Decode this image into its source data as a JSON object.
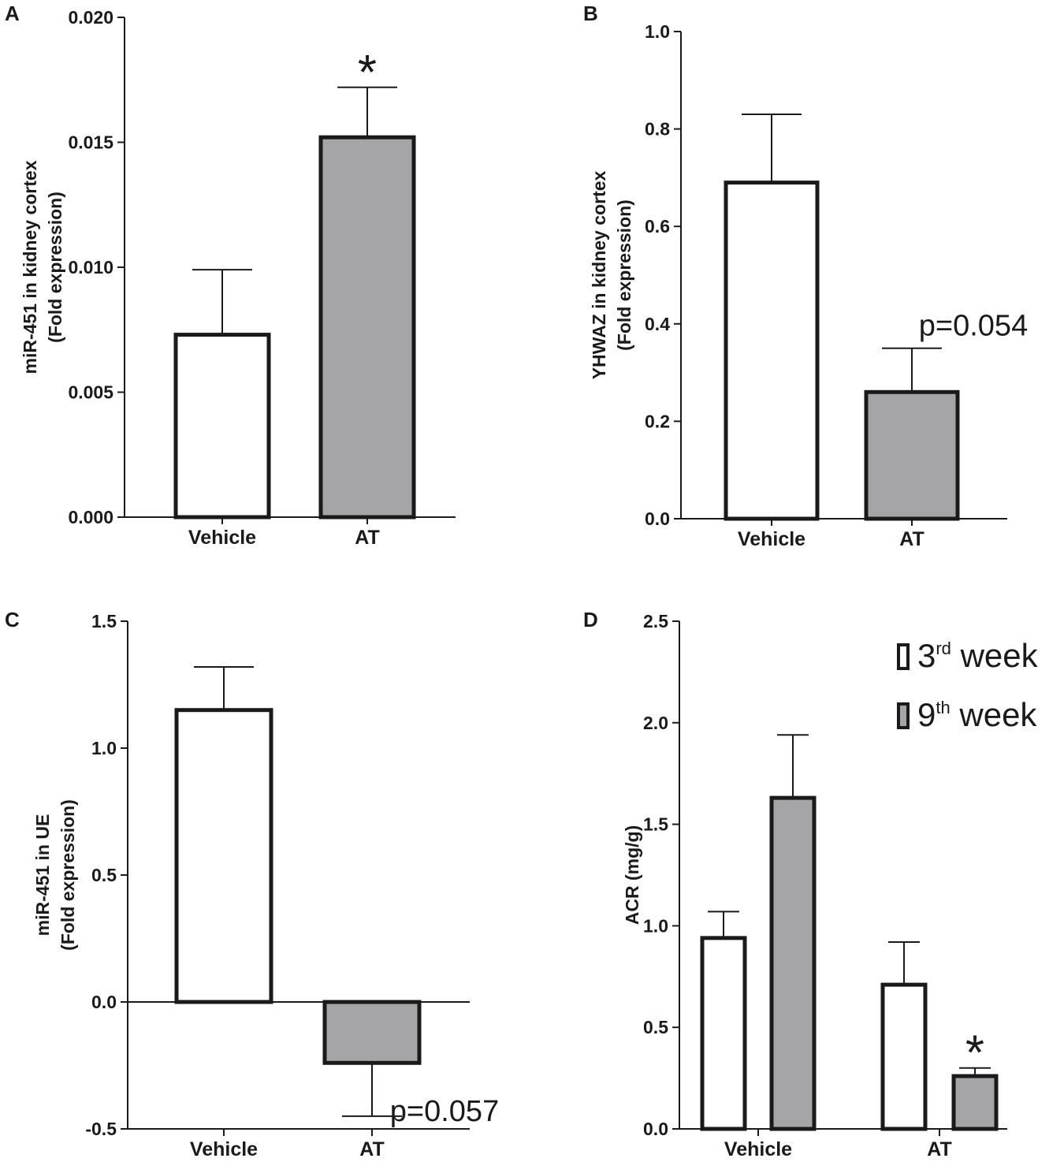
{
  "chart_data": [
    {
      "panel": "A",
      "type": "bar",
      "categories": [
        "Vehicle",
        "AT"
      ],
      "series": [
        {
          "name": "",
          "values": [
            0.0073,
            0.0152
          ],
          "errors": [
            0.0026,
            0.002
          ],
          "fills": [
            "#ffffff",
            "#a5a5a8"
          ]
        }
      ],
      "ylabel_line1": "miR-451 in kidney cortex",
      "ylabel_line2": "(Fold expression)",
      "ylim": [
        0.0,
        0.02
      ],
      "yticks": [
        0.0,
        0.005,
        0.01,
        0.015,
        0.02
      ],
      "ytick_labels": [
        "0.000",
        "0.005",
        "0.010",
        "0.015",
        "0.020"
      ],
      "annotations": [
        {
          "text": "*",
          "category": 1,
          "kind": "star"
        }
      ]
    },
    {
      "panel": "B",
      "type": "bar",
      "categories": [
        "Vehicle",
        "AT"
      ],
      "series": [
        {
          "name": "",
          "values": [
            0.69,
            0.26
          ],
          "errors": [
            0.14,
            0.09
          ],
          "fills": [
            "#ffffff",
            "#a5a5a8"
          ]
        }
      ],
      "ylabel_line1": "YHWAZ in kidney cortex",
      "ylabel_line2": "(Fold expression)",
      "ylim": [
        0.0,
        1.0
      ],
      "yticks": [
        0.0,
        0.2,
        0.4,
        0.6,
        0.8,
        1.0
      ],
      "ytick_labels": [
        "0.0",
        "0.2",
        "0.4",
        "0.6",
        "0.8",
        "1.0"
      ],
      "annotations": [
        {
          "text": "p=0.054",
          "category": 1,
          "kind": "p"
        }
      ]
    },
    {
      "panel": "C",
      "type": "bar",
      "categories": [
        "Vehicle",
        "AT"
      ],
      "series": [
        {
          "name": "",
          "values": [
            1.15,
            -0.24
          ],
          "errors": [
            0.17,
            0.21
          ],
          "fills": [
            "#ffffff",
            "#a5a5a8"
          ]
        }
      ],
      "ylabel_line1": "miR-451 in UE",
      "ylabel_line2": "(Fold expression)",
      "ylim": [
        -0.5,
        1.5
      ],
      "yticks": [
        -0.5,
        0.0,
        0.5,
        1.0,
        1.5
      ],
      "ytick_labels": [
        "-0.5",
        "0.0",
        "0.5",
        "1.0",
        "1.5"
      ],
      "annotations": [
        {
          "text": "p=0.057",
          "category": 1,
          "kind": "p"
        }
      ]
    },
    {
      "panel": "D",
      "type": "bar",
      "categories": [
        "Vehicle",
        "AT"
      ],
      "series": [
        {
          "name": "3rd week",
          "name_base": "3",
          "name_sup": "rd",
          "name_rest": " week",
          "values": [
            0.94,
            0.71
          ],
          "errors": [
            0.13,
            0.21
          ],
          "fill": "#ffffff"
        },
        {
          "name": "9th week",
          "name_base": "9",
          "name_sup": "th",
          "name_rest": " week",
          "values": [
            1.63,
            0.26
          ],
          "errors": [
            0.31,
            0.04
          ],
          "fill": "#a5a5a8"
        }
      ],
      "ylabel_line1": "ACR (mg/g)",
      "ylabel_line2": "",
      "ylim": [
        0.0,
        2.5
      ],
      "yticks": [
        0.0,
        0.5,
        1.0,
        1.5,
        2.0,
        2.5
      ],
      "ytick_labels": [
        "0.0",
        "0.5",
        "1.0",
        "1.5",
        "2.0",
        "2.5"
      ],
      "legend_position": "top-right",
      "annotations": [
        {
          "text": "*",
          "category": 1,
          "series": 1,
          "kind": "star"
        }
      ]
    }
  ]
}
